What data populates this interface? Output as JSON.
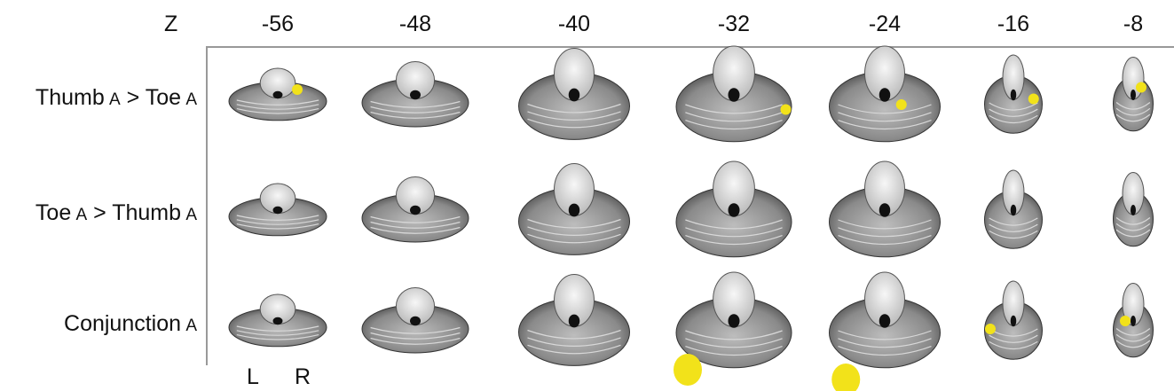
{
  "axis_label": "Z",
  "slices": [
    "-56",
    "-48",
    "-40",
    "-32",
    "-24",
    "-16",
    "-8"
  ],
  "rows": [
    {
      "parts": [
        "Thumb",
        "A",
        " > Toe",
        "A"
      ]
    },
    {
      "parts": [
        "Toe",
        "A",
        " > Thumb",
        "A"
      ]
    },
    {
      "parts": [
        "Conjunction",
        "A",
        "",
        ""
      ]
    }
  ],
  "orientation": {
    "left": "L",
    "right": "R"
  },
  "colors": {
    "activation": "#f2e21a",
    "tissue": "#8a8a8a",
    "stem": "#e6e6e6"
  },
  "activations": [
    [
      [
        0.3,
        0.2
      ],
      [],
      [],
      [
        0.55,
        0.45
      ],
      [
        0.25,
        0.4
      ],
      [
        0.45,
        0.35
      ],
      [
        0.3,
        0.2
      ]
    ],
    [
      [],
      [],
      [],
      [],
      [],
      [],
      []
    ],
    [
      [],
      [],
      [],
      [
        0.1,
        0.8
      ],
      [
        0.15,
        0.9
      ],
      [
        0.1,
        0.4
      ],
      [
        0.3,
        0.3
      ]
    ]
  ]
}
